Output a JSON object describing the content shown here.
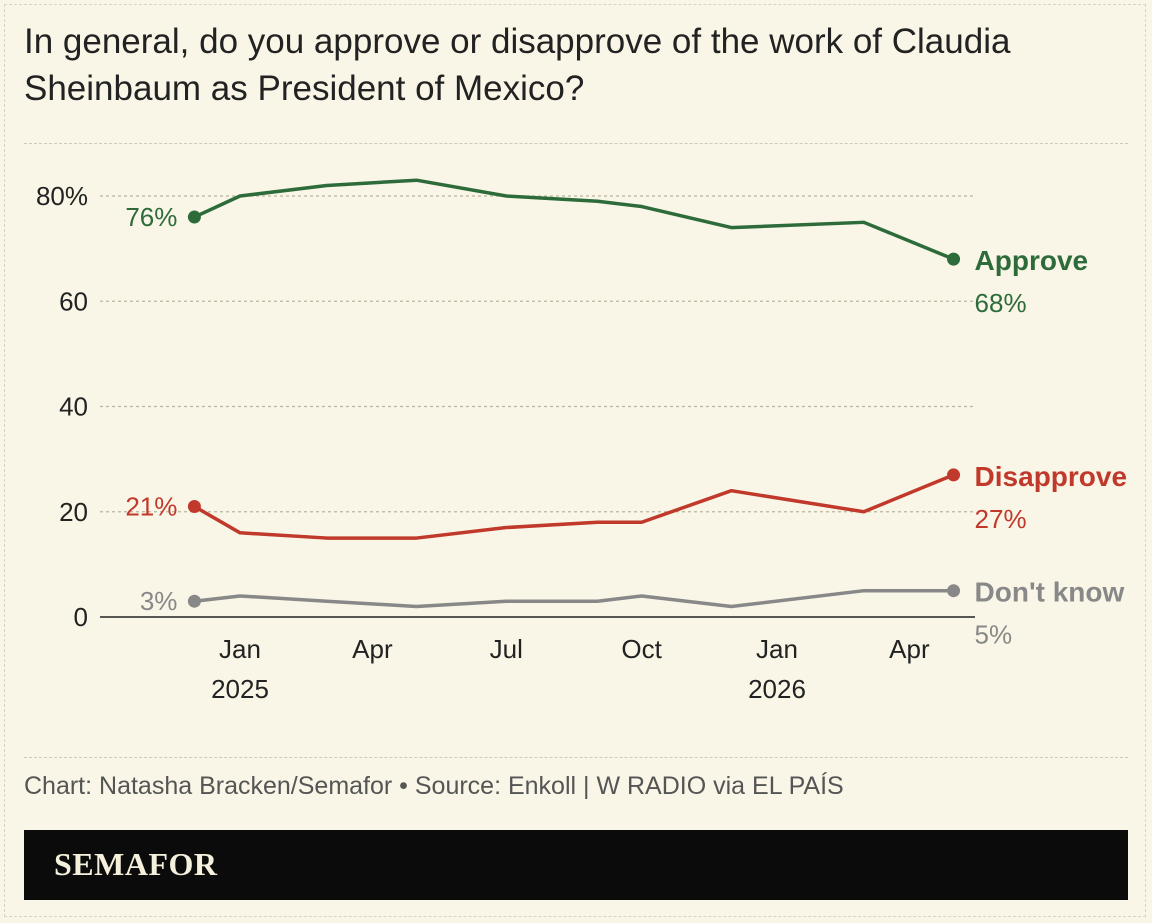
{
  "header": {
    "title": "In general, do you approve or disapprove of the work of Claudia Sheinbaum as President of Mexico?"
  },
  "footer": {
    "credit": "Chart: Natasha Bracken/Semafor • Source: Enkoll | W RADIO via EL PAÍS",
    "brand": "SEMAFOR"
  },
  "chart_data": {
    "type": "line",
    "title": "In general, do you approve or disapprove of the work of Claudia Sheinbaum as President of Mexico?",
    "xlabel": "",
    "ylabel": "",
    "ylim": [
      0,
      90
    ],
    "y_ticks": [
      0,
      20,
      40,
      60,
      80
    ],
    "y_tick_labels": [
      "0",
      "20",
      "40",
      "60",
      "80%"
    ],
    "x_ticks": [
      {
        "date": "2025-01-01",
        "label": "Jan",
        "sublabel": "2025"
      },
      {
        "date": "2025-04-01",
        "label": "Apr",
        "sublabel": ""
      },
      {
        "date": "2025-07-01",
        "label": "Jul",
        "sublabel": ""
      },
      {
        "date": "2025-10-01",
        "label": "Oct",
        "sublabel": ""
      },
      {
        "date": "2026-01-01",
        "label": "Jan",
        "sublabel": "2026"
      },
      {
        "date": "2026-04-01",
        "label": "Apr",
        "sublabel": ""
      }
    ],
    "x": [
      "2024-12-01",
      "2025-01-01",
      "2025-03-01",
      "2025-05-01",
      "2025-07-01",
      "2025-09-01",
      "2025-10-01",
      "2025-12-01",
      "2026-03-01",
      "2026-05-01"
    ],
    "grid": true,
    "legend": "end-of-line labels",
    "series": [
      {
        "name": "Approve",
        "color": "#2e6b3a",
        "values": [
          76,
          80,
          82,
          83,
          80,
          79,
          78,
          74,
          75,
          68
        ],
        "start_label": "76%",
        "end_label": "68%"
      },
      {
        "name": "Disapprove",
        "color": "#c0392b",
        "values": [
          21,
          16,
          15,
          15,
          17,
          18,
          18,
          24,
          20,
          27
        ],
        "start_label": "21%",
        "end_label": "27%"
      },
      {
        "name": "Don't know",
        "color": "#888888",
        "values": [
          3,
          4,
          3,
          2,
          3,
          3,
          4,
          2,
          5,
          5
        ],
        "start_label": "3%",
        "end_label": "5%"
      }
    ]
  }
}
